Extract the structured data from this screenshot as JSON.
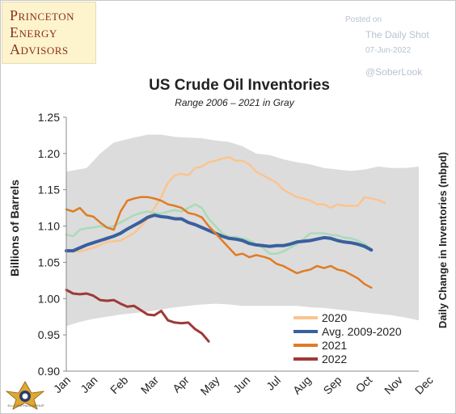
{
  "logo": {
    "lines": [
      "Princeton",
      "Energy",
      "Advisors"
    ],
    "color": "#8b2f1a",
    "background": "#fdf3cc"
  },
  "watermark": {
    "posted_label": "Posted on",
    "source": "The Daily Shot",
    "date": "07-Jun-2022",
    "handle": "@SoberLook"
  },
  "badge": {
    "text": "ELLE DUFFALO GROUP"
  },
  "chart_data": {
    "type": "line",
    "title": "US Crude Oil Inventories",
    "subtitle": "Range 2006 – 2021 in Gray",
    "ylabel": "Billions of Barrels",
    "ylabel_right": "Daily Change in Inventories (mbpd)",
    "ylim": [
      0.9,
      1.25
    ],
    "yticks": [
      "0.90",
      "0.95",
      "1.00",
      "1.05",
      "1.10",
      "1.15",
      "1.20",
      "1.25"
    ],
    "xlim": [
      0,
      52
    ],
    "xtick_labels": [
      {
        "label": "Jan",
        "x": 0
      },
      {
        "label": "Jan",
        "x": 4
      },
      {
        "label": "Feb",
        "x": 8.5
      },
      {
        "label": "Mar",
        "x": 13
      },
      {
        "label": "Apr",
        "x": 17.5
      },
      {
        "label": "May",
        "x": 22
      },
      {
        "label": "Jun",
        "x": 26.5
      },
      {
        "label": "Jul",
        "x": 31
      },
      {
        "label": "Aug",
        "x": 35.5
      },
      {
        "label": "Sep",
        "x": 40
      },
      {
        "label": "Oct",
        "x": 44.5
      },
      {
        "label": "Nov",
        "x": 49
      },
      {
        "label": "Dec",
        "x": 53.5
      }
    ],
    "range_band": {
      "name": "Range 2006 – 2021",
      "color": "#dcdcdc",
      "upper": [
        [
          0,
          1.175
        ],
        [
          3,
          1.18
        ],
        [
          5,
          1.2
        ],
        [
          7,
          1.215
        ],
        [
          10,
          1.222
        ],
        [
          12,
          1.226
        ],
        [
          14,
          1.226
        ],
        [
          16,
          1.223
        ],
        [
          18,
          1.222
        ],
        [
          20,
          1.221
        ],
        [
          22,
          1.218
        ],
        [
          24,
          1.216
        ],
        [
          26,
          1.21
        ],
        [
          28,
          1.2
        ],
        [
          30,
          1.198
        ],
        [
          32,
          1.192
        ],
        [
          34,
          1.188
        ],
        [
          36,
          1.185
        ],
        [
          38,
          1.18
        ],
        [
          40,
          1.178
        ],
        [
          42,
          1.176
        ],
        [
          44,
          1.178
        ],
        [
          46,
          1.182
        ],
        [
          48,
          1.18
        ],
        [
          50,
          1.18
        ],
        [
          52,
          1.182
        ]
      ],
      "lower": [
        [
          0,
          0.962
        ],
        [
          2,
          0.968
        ],
        [
          4,
          0.972
        ],
        [
          6,
          0.975
        ],
        [
          8,
          0.978
        ],
        [
          10,
          0.98
        ],
        [
          12,
          0.982
        ],
        [
          14,
          0.985
        ],
        [
          16,
          0.988
        ],
        [
          18,
          0.99
        ],
        [
          20,
          0.992
        ],
        [
          22,
          0.993
        ],
        [
          24,
          0.992
        ],
        [
          26,
          0.99
        ],
        [
          28,
          0.99
        ],
        [
          30,
          0.99
        ],
        [
          32,
          0.99
        ],
        [
          34,
          0.99
        ],
        [
          36,
          0.988
        ],
        [
          38,
          0.987
        ],
        [
          40,
          0.985
        ],
        [
          42,
          0.983
        ],
        [
          44,
          0.981
        ],
        [
          46,
          0.979
        ],
        [
          48,
          0.977
        ],
        [
          50,
          0.974
        ],
        [
          52,
          0.97
        ]
      ]
    },
    "series": [
      {
        "name": "2020",
        "color": "#fbc48f",
        "width": 2.5,
        "points": [
          [
            0,
            1.065
          ],
          [
            2,
            1.065
          ],
          [
            4,
            1.07
          ],
          [
            6,
            1.078
          ],
          [
            8,
            1.08
          ],
          [
            10,
            1.09
          ],
          [
            12,
            1.11
          ],
          [
            14,
            1.14
          ],
          [
            15,
            1.16
          ],
          [
            16,
            1.17
          ],
          [
            17,
            1.172
          ],
          [
            18,
            1.17
          ],
          [
            19,
            1.18
          ],
          [
            20,
            1.182
          ],
          [
            21,
            1.188
          ],
          [
            22,
            1.19
          ],
          [
            23,
            1.193
          ],
          [
            24,
            1.195
          ],
          [
            25,
            1.19
          ],
          [
            26,
            1.19
          ],
          [
            27,
            1.185
          ],
          [
            28,
            1.175
          ],
          [
            29,
            1.17
          ],
          [
            30,
            1.165
          ],
          [
            31,
            1.16
          ],
          [
            32,
            1.15
          ],
          [
            33,
            1.145
          ],
          [
            34,
            1.14
          ],
          [
            35,
            1.138
          ],
          [
            36,
            1.135
          ],
          [
            37,
            1.13
          ],
          [
            38,
            1.13
          ],
          [
            39,
            1.125
          ],
          [
            40,
            1.13
          ],
          [
            41,
            1.128
          ],
          [
            42,
            1.128
          ],
          [
            43,
            1.128
          ],
          [
            44,
            1.14
          ],
          [
            45,
            1.138
          ],
          [
            46,
            1.136
          ],
          [
            47,
            1.132
          ]
        ]
      },
      {
        "name": "2021 (light)",
        "color": "#a9dbb9",
        "width": 2.5,
        "points": [
          [
            0,
            1.088
          ],
          [
            1,
            1.086
          ],
          [
            2,
            1.095
          ],
          [
            3,
            1.097
          ],
          [
            4,
            1.098
          ],
          [
            5,
            1.1
          ],
          [
            6,
            1.098
          ],
          [
            7,
            1.1
          ],
          [
            8,
            1.105
          ],
          [
            9,
            1.11
          ],
          [
            10,
            1.115
          ],
          [
            11,
            1.118
          ],
          [
            12,
            1.12
          ],
          [
            13,
            1.118
          ],
          [
            14,
            1.117
          ],
          [
            15,
            1.12
          ],
          [
            16,
            1.122
          ],
          [
            17,
            1.12
          ],
          [
            18,
            1.125
          ],
          [
            19,
            1.13
          ],
          [
            20,
            1.125
          ],
          [
            21,
            1.11
          ],
          [
            22,
            1.1
          ],
          [
            23,
            1.09
          ],
          [
            24,
            1.085
          ],
          [
            25,
            1.085
          ],
          [
            26,
            1.083
          ],
          [
            27,
            1.08
          ],
          [
            28,
            1.075
          ],
          [
            29,
            1.07
          ],
          [
            30,
            1.062
          ],
          [
            31,
            1.062
          ],
          [
            32,
            1.065
          ],
          [
            33,
            1.07
          ],
          [
            34,
            1.075
          ],
          [
            35,
            1.082
          ],
          [
            36,
            1.09
          ],
          [
            37,
            1.09
          ],
          [
            38,
            1.09
          ],
          [
            39,
            1.088
          ],
          [
            40,
            1.087
          ],
          [
            41,
            1.084
          ],
          [
            42,
            1.083
          ],
          [
            43,
            1.08
          ],
          [
            44,
            1.075
          ],
          [
            45,
            1.068
          ]
        ]
      },
      {
        "name": "Avg. 2009-2020",
        "color": "#3a5f9e",
        "width": 4,
        "points": [
          [
            0,
            1.066
          ],
          [
            1,
            1.066
          ],
          [
            2,
            1.07
          ],
          [
            3,
            1.074
          ],
          [
            4,
            1.077
          ],
          [
            5,
            1.08
          ],
          [
            6,
            1.083
          ],
          [
            7,
            1.086
          ],
          [
            8,
            1.09
          ],
          [
            9,
            1.096
          ],
          [
            10,
            1.101
          ],
          [
            11,
            1.106
          ],
          [
            12,
            1.112
          ],
          [
            13,
            1.115
          ],
          [
            14,
            1.113
          ],
          [
            15,
            1.112
          ],
          [
            16,
            1.11
          ],
          [
            17,
            1.11
          ],
          [
            18,
            1.105
          ],
          [
            19,
            1.102
          ],
          [
            20,
            1.098
          ],
          [
            21,
            1.094
          ],
          [
            22,
            1.09
          ],
          [
            23,
            1.086
          ],
          [
            24,
            1.083
          ],
          [
            25,
            1.082
          ],
          [
            26,
            1.08
          ],
          [
            27,
            1.076
          ],
          [
            28,
            1.074
          ],
          [
            29,
            1.073
          ],
          [
            30,
            1.072
          ],
          [
            31,
            1.073
          ],
          [
            32,
            1.073
          ],
          [
            33,
            1.075
          ],
          [
            34,
            1.078
          ],
          [
            35,
            1.079
          ],
          [
            36,
            1.08
          ],
          [
            37,
            1.082
          ],
          [
            38,
            1.084
          ],
          [
            39,
            1.083
          ],
          [
            40,
            1.08
          ],
          [
            41,
            1.078
          ],
          [
            42,
            1.077
          ],
          [
            43,
            1.075
          ],
          [
            44,
            1.072
          ],
          [
            45,
            1.067
          ]
        ]
      },
      {
        "name": "2021",
        "color": "#e07b24",
        "width": 2.5,
        "points": [
          [
            0,
            1.123
          ],
          [
            1,
            1.12
          ],
          [
            2,
            1.125
          ],
          [
            3,
            1.115
          ],
          [
            4,
            1.113
          ],
          [
            5,
            1.105
          ],
          [
            6,
            1.098
          ],
          [
            7,
            1.095
          ],
          [
            8,
            1.12
          ],
          [
            9,
            1.135
          ],
          [
            10,
            1.138
          ],
          [
            11,
            1.14
          ],
          [
            12,
            1.14
          ],
          [
            13,
            1.138
          ],
          [
            14,
            1.135
          ],
          [
            15,
            1.13
          ],
          [
            16,
            1.128
          ],
          [
            17,
            1.125
          ],
          [
            18,
            1.118
          ],
          [
            19,
            1.116
          ],
          [
            20,
            1.112
          ],
          [
            21,
            1.1
          ],
          [
            22,
            1.09
          ],
          [
            23,
            1.08
          ],
          [
            24,
            1.07
          ],
          [
            25,
            1.06
          ],
          [
            26,
            1.062
          ],
          [
            27,
            1.057
          ],
          [
            28,
            1.06
          ],
          [
            29,
            1.058
          ],
          [
            30,
            1.055
          ],
          [
            31,
            1.048
          ],
          [
            32,
            1.045
          ],
          [
            33,
            1.04
          ],
          [
            34,
            1.035
          ],
          [
            35,
            1.038
          ],
          [
            36,
            1.04
          ],
          [
            37,
            1.045
          ],
          [
            38,
            1.042
          ],
          [
            39,
            1.045
          ],
          [
            40,
            1.04
          ],
          [
            41,
            1.038
          ],
          [
            42,
            1.033
          ],
          [
            43,
            1.028
          ],
          [
            44,
            1.02
          ],
          [
            45,
            1.015
          ]
        ]
      },
      {
        "name": "2022",
        "color": "#9e3a36",
        "width": 3,
        "points": [
          [
            0,
            1.012
          ],
          [
            1,
            1.007
          ],
          [
            2,
            1.006
          ],
          [
            3,
            1.007
          ],
          [
            4,
            1.004
          ],
          [
            5,
            0.998
          ],
          [
            6,
            0.997
          ],
          [
            7,
            0.998
          ],
          [
            8,
            0.993
          ],
          [
            9,
            0.989
          ],
          [
            10,
            0.99
          ],
          [
            11,
            0.984
          ],
          [
            12,
            0.978
          ],
          [
            13,
            0.977
          ],
          [
            14,
            0.983
          ],
          [
            15,
            0.97
          ],
          [
            16,
            0.967
          ],
          [
            17,
            0.966
          ],
          [
            18,
            0.967
          ],
          [
            19,
            0.958
          ],
          [
            20,
            0.952
          ],
          [
            21,
            0.941
          ]
        ]
      }
    ],
    "legend": {
      "position": "bottom-right",
      "entries": [
        {
          "name": "2020",
          "color": "#fbc48f"
        },
        {
          "name": "Avg. 2009-2020",
          "color": "#3a5f9e"
        },
        {
          "name": "2021",
          "color": "#e07b24"
        },
        {
          "name": "2022",
          "color": "#9e3a36"
        }
      ]
    }
  }
}
